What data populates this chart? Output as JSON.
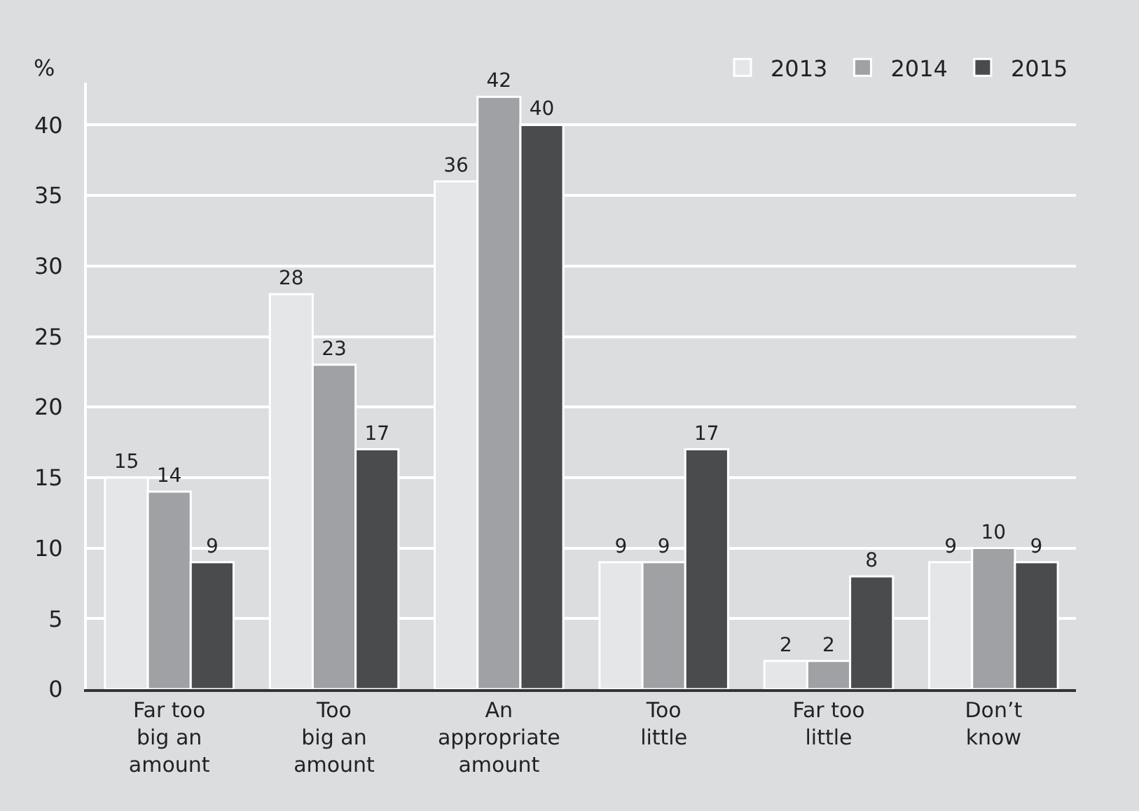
{
  "chart_data": {
    "type": "bar",
    "ylabel": "%",
    "categories": [
      "Far too\nbig an\namount",
      "Too\nbig an\namount",
      "An\nappropriate\namount",
      "Too\nlittle",
      "Far too\nlittle",
      "Don’t\nknow"
    ],
    "series": [
      {
        "name": "2013",
        "color": "#e5e6e8",
        "values": [
          15,
          28,
          36,
          9,
          2,
          9
        ]
      },
      {
        "name": "2014",
        "color": "#a0a1a4",
        "values": [
          14,
          23,
          42,
          9,
          2,
          10
        ]
      },
      {
        "name": "2015",
        "color": "#4a4b4d",
        "values": [
          9,
          17,
          40,
          17,
          8,
          9
        ]
      }
    ],
    "ylim": [
      0,
      43
    ],
    "yticks": [
      0,
      5,
      10,
      15,
      20,
      25,
      30,
      35,
      40
    ],
    "grid": "y",
    "legend": "top right",
    "data_labels": true
  }
}
